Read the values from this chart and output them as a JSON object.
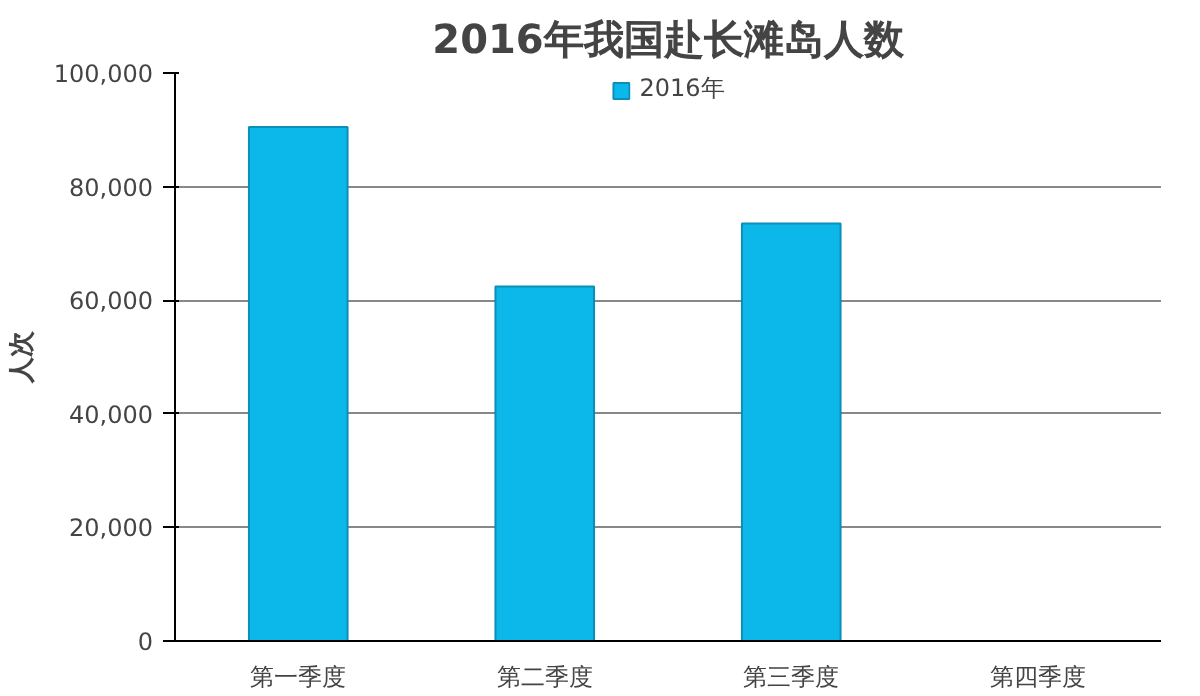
{
  "chart_data": {
    "type": "bar",
    "title": "2016年我国赴长滩岛人数",
    "ylabel": "人次",
    "categories": [
      "第一季度",
      "第二季度",
      "第三季度",
      "第四季度"
    ],
    "series": [
      {
        "name": "2016年",
        "color": "#0cb8ea",
        "values": [
          90500,
          62400,
          73500,
          null
        ]
      }
    ],
    "ylim": [
      0,
      100000
    ],
    "yticks": [
      {
        "value": 0,
        "label": "0"
      },
      {
        "value": 20000,
        "label": "20,000"
      },
      {
        "value": 40000,
        "label": "40,000"
      },
      {
        "value": 60000,
        "label": "60,000"
      },
      {
        "value": 80000,
        "label": "80,000"
      },
      {
        "value": 100000,
        "label": "100,000"
      }
    ],
    "grid": "y",
    "legend": "top"
  }
}
